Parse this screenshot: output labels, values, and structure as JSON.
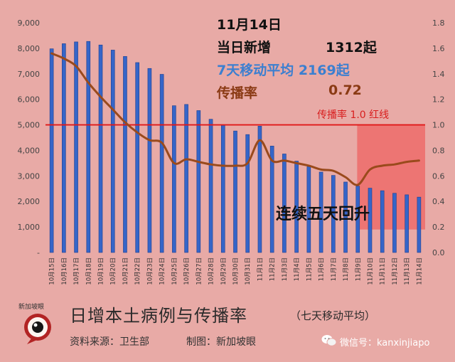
{
  "info": {
    "date": "11月14日",
    "daily_label": "当日新增",
    "daily_value": "1312起",
    "ma_text": "7天移动平均 2169起",
    "rt_label": "传播率",
    "rt_value": "0.72"
  },
  "annotations": {
    "redline_label": "传播率 1.0  红线",
    "rising_label": "连续五天回升"
  },
  "footer": {
    "title": "日增本土病例与传播率",
    "subtitle": "（七天移动平均）",
    "source": "资料来源：卫生部",
    "credit": "制图：新加坡眼",
    "logo_text": "新加坡眼",
    "wechat": "微信号：kanxinjiapo"
  },
  "icons": {
    "logo": "eye-logo-icon",
    "wechat": "wechat-icon"
  },
  "colors": {
    "bar": "#3565c8",
    "bar_edge": "#1d3f8f",
    "rt_line": "#9a4a1c",
    "red_line": "#e01818",
    "highlight": "#f04848"
  },
  "chart_data": {
    "type": "bar",
    "categories": [
      "10月15日",
      "10月16日",
      "10月17日",
      "10月18日",
      "10月19日",
      "10月20日",
      "10月21日",
      "10月22日",
      "10月23日",
      "10月24日",
      "10月25日",
      "10月26日",
      "10月27日",
      "10月28日",
      "10月29日",
      "10月30日",
      "10月31日",
      "11月1日",
      "11月2日",
      "11月3日",
      "11月4日",
      "11月5日",
      "11月6日",
      "11月7日",
      "11月8日",
      "11月9日",
      "11月10日",
      "11月11日",
      "11月12日",
      "11月13日",
      "11月14日"
    ],
    "series": [
      {
        "type": "bar",
        "axis": "left",
        "values": [
          7980,
          8180,
          8250,
          8270,
          8130,
          7930,
          7680,
          7440,
          7210,
          6980,
          5750,
          5800,
          5560,
          5220,
          4980,
          4760,
          4620,
          4950,
          4170,
          3860,
          3580,
          3360,
          3150,
          3020,
          2760,
          2600,
          2520,
          2420,
          2320,
          2260,
          2169
        ]
      },
      {
        "type": "line",
        "axis": "right",
        "values": [
          1.56,
          1.52,
          1.46,
          1.33,
          1.22,
          1.12,
          1.02,
          0.94,
          0.88,
          0.86,
          0.7,
          0.73,
          0.71,
          0.69,
          0.68,
          0.68,
          0.7,
          0.88,
          0.72,
          0.72,
          0.7,
          0.68,
          0.65,
          0.64,
          0.59,
          0.53,
          0.65,
          0.68,
          0.69,
          0.71,
          0.72
        ]
      }
    ],
    "ylim_left": [
      0,
      9000
    ],
    "ylim_right": [
      0,
      1.8
    ],
    "yticks_left": [
      "-",
      "1,000",
      "2,000",
      "3,000",
      "4,000",
      "5,000",
      "6,000",
      "7,000",
      "8,000",
      "9,000"
    ],
    "yticks_right": [
      "0.0",
      "0.2",
      "0.4",
      "0.6",
      "0.8",
      "1.0",
      "1.2",
      "1.4",
      "1.6",
      "1.8"
    ],
    "reference_line": 1.0,
    "highlight_range": [
      "11月10日",
      "11月14日"
    ]
  }
}
